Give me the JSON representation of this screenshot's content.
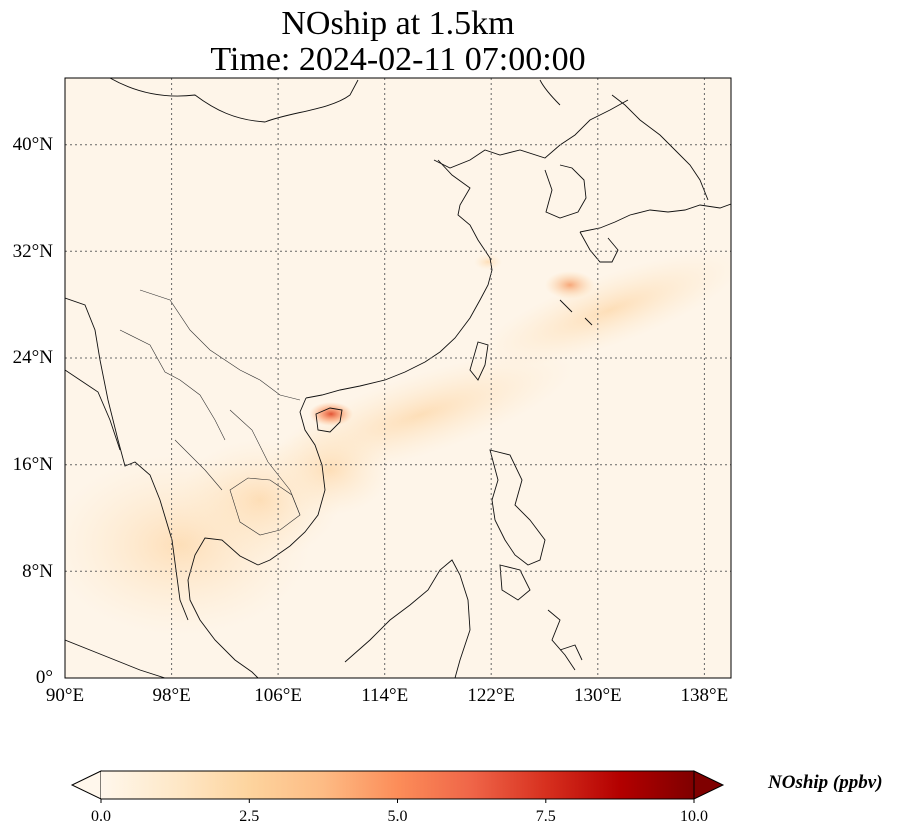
{
  "title": {
    "line1": "NOship at 1.5km",
    "line2": "Time: 2024-02-11 07:00:00"
  },
  "map": {
    "extent": {
      "lon": [
        90,
        140
      ],
      "lat": [
        0,
        45
      ]
    },
    "gridlines": "dotted",
    "lat_ticks": [
      "40°N",
      "32°N",
      "24°N",
      "16°N",
      "8°N",
      "0°"
    ],
    "lon_ticks": [
      "90°E",
      "98°E",
      "106°E",
      "114°E",
      "122°E",
      "130°E",
      "138°E"
    ],
    "colormap": "OrRd",
    "hotspots": [
      {
        "name": "Hainan / Gulf of Tonkin",
        "lon": 110,
        "lat": 19.5,
        "level": 6.5
      },
      {
        "name": "East China Sea",
        "lon": 128,
        "lat": 29.5,
        "level": 3.5
      }
    ]
  },
  "colorbar": {
    "label": "NOship (ppbv)",
    "ticks": [
      "0.0",
      "2.5",
      "5.0",
      "7.5",
      "10.0"
    ],
    "min": 0,
    "max": 10,
    "extend": "both",
    "colors": [
      "#fff7ec",
      "#fee8c8",
      "#fdd49e",
      "#fdbb84",
      "#fc8d59",
      "#ef6548",
      "#d7301f",
      "#b30000",
      "#7f0000"
    ]
  }
}
